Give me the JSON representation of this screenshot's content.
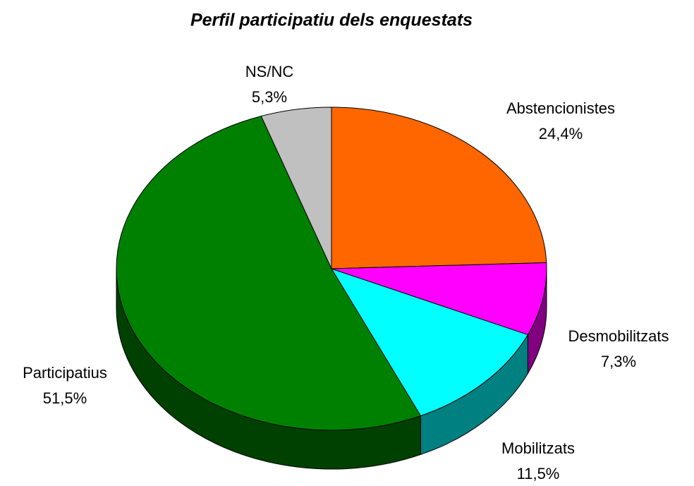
{
  "chart_data": {
    "type": "pie",
    "title": "Perfil participatiu dels enquestats",
    "categories": [
      "Abstencionistes",
      "Desmobilitzats",
      "Mobilitzats",
      "Participatius",
      "NS/NC"
    ],
    "values": [
      24.4,
      7.3,
      11.5,
      51.5,
      5.3
    ],
    "value_labels": [
      "24,4%",
      "7,3%",
      "11,5%",
      "51,5%",
      "5,3%"
    ],
    "colors": [
      "#FF6600",
      "#FF00FF",
      "#00FFFF",
      "#008000",
      "#C0C0C0"
    ]
  }
}
